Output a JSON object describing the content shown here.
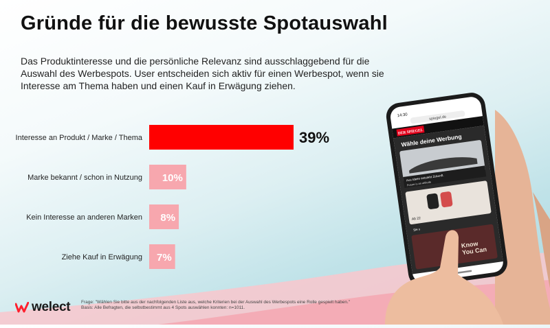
{
  "title": "Gründe für die bewusste Spotauswahl",
  "intro": "Das Produktinteresse und die persönliche Relevanz sind ausschlaggebend für die Auswahl des Werbespots. User entscheiden sich aktiv für einen Werbespot, wenn sie Interesse am Thema haben und einen Kauf in Erwägung ziehen.",
  "chart_data": {
    "type": "bar",
    "orientation": "horizontal",
    "categories": [
      "Interesse an Produkt / Marke / Thema",
      "Marke bekannt / schon in Nutzung",
      "Kein Interesse an anderen Marken",
      "Ziehe Kauf in Erwägung"
    ],
    "values": [
      39,
      10,
      8,
      7
    ],
    "value_labels": [
      "39%",
      "10%",
      "8%",
      "7%"
    ],
    "xlim": [
      0,
      39
    ],
    "grid": false,
    "highlight_color": "#ff0000",
    "bar_color": "#f7a7ae",
    "label_color_highlight": "#111111",
    "label_color": "#ffffff"
  },
  "phone": {
    "time": "14:30",
    "url": "spiegel.de",
    "brand": "DER SPIEGEL",
    "prompt": "Wähle deine Werbung",
    "card1_caption": "Aus Ideen entsteht Zukunft.",
    "card1_sub": "Future is an attitude",
    "card2_caption": "Ab 22",
    "card2_sub": "Sie s",
    "card3_text": "Know You Can"
  },
  "logo": {
    "text": "welect",
    "color": "#ff1f2d"
  },
  "footnote": {
    "line1": "Frage: \"Wählen Sie bitte aus der nachfolgenden Liste aus, welche Kriterien bei der Auswahl des Werbespots eine Rolle gespielt haben.\"",
    "line2": "Basis: Alle Befragten, die selbstbestimmt aus 4 Spots auswählen konnten: n=1011."
  }
}
